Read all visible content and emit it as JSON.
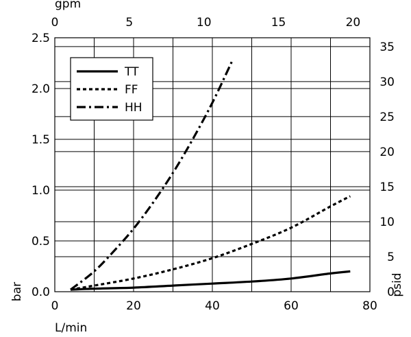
{
  "chart_data": {
    "type": "line",
    "title": "",
    "xlabel": "L/min",
    "ylabel": "bar",
    "x2label": "gpm",
    "y2label": "psid",
    "xlim": [
      0,
      80
    ],
    "ylim": [
      0,
      2.5
    ],
    "x2lim": [
      0,
      21.13
    ],
    "y2lim": [
      0,
      36.26
    ],
    "xticks": [
      "0",
      "20",
      "40",
      "60",
      "80"
    ],
    "yticks": [
      "0.0",
      "0.5",
      "1.0",
      "1.5",
      "2.0",
      "2.5"
    ],
    "x2ticks": [
      "0",
      "5",
      "10",
      "15",
      "20"
    ],
    "y2ticks": [
      "0",
      "5",
      "10",
      "15",
      "20",
      "25",
      "30",
      "35"
    ],
    "grid": true,
    "legend_position": "top-left",
    "series": [
      {
        "name": "TT",
        "style": "solid",
        "x": [
          4,
          10,
          20,
          30,
          40,
          50,
          60,
          70,
          75
        ],
        "y": [
          0.02,
          0.03,
          0.04,
          0.06,
          0.08,
          0.1,
          0.13,
          0.18,
          0.2
        ]
      },
      {
        "name": "FF",
        "style": "dotted",
        "x": [
          4,
          10,
          20,
          30,
          40,
          50,
          60,
          70,
          75
        ],
        "y": [
          0.02,
          0.06,
          0.13,
          0.22,
          0.33,
          0.47,
          0.63,
          0.84,
          0.94
        ]
      },
      {
        "name": "HH",
        "style": "dashdot",
        "x": [
          4,
          10,
          15,
          20,
          25,
          30,
          35,
          40,
          45
        ],
        "y": [
          0.02,
          0.2,
          0.4,
          0.62,
          0.88,
          1.17,
          1.5,
          1.86,
          2.27
        ]
      }
    ]
  }
}
